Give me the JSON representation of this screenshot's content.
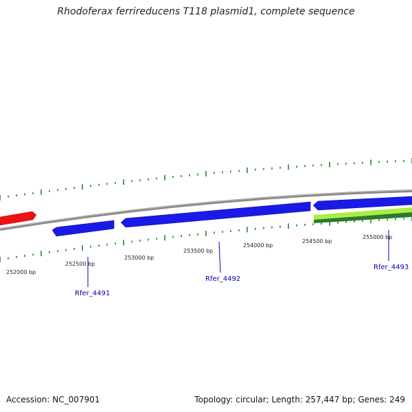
{
  "title": "Rhodoferax ferrireducens T118 plasmid1, complete sequence",
  "footer": {
    "accession": "Accession: NC_007901",
    "summary": "Topology: circular; Length: 257,447 bp; Genes: 249"
  },
  "ticks": [
    "252000 bp",
    "252500 bp",
    "253000 bp",
    "253500 bp",
    "254000 bp",
    "254500 bp",
    "255000 bp"
  ],
  "genes": [
    {
      "label": "Rfer_4491",
      "color": "#0000cc"
    },
    {
      "label": "Rfer_4492",
      "color": "#0000cc"
    },
    {
      "label": "Rfer_4493",
      "color": "#0000cc"
    }
  ],
  "colors": {
    "backbone": "#888888",
    "red_feature": "#ee1111",
    "blue_feature": "#1111dd",
    "green_light": "#aaee44",
    "green_dark": "#2d7a2d",
    "gc_ticks": "#228822",
    "label_color": "#0000aa"
  }
}
